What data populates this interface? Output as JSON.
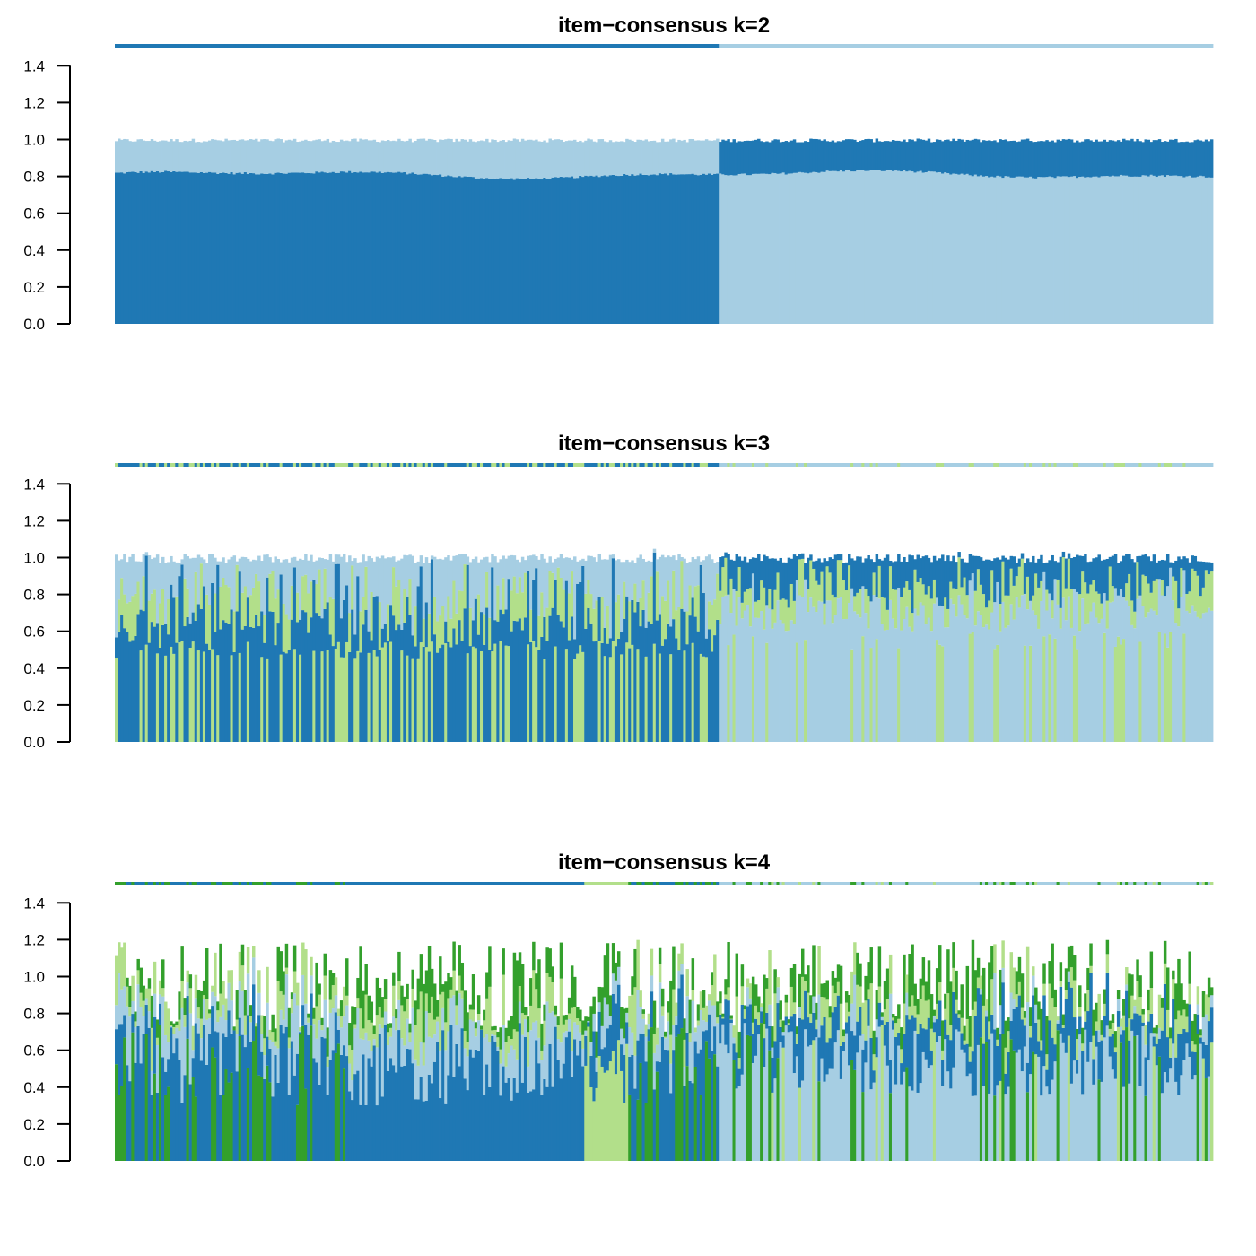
{
  "chart_data": [
    {
      "type": "stacked-bar",
      "title": "item−consensus k=2",
      "k": 2,
      "n_items": 400,
      "split_item": 220,
      "ylim": [
        0,
        1.4
      ],
      "yticks": [
        "0.0",
        "0.2",
        "0.4",
        "0.6",
        "0.8",
        "1.0",
        "1.2",
        "1.4"
      ],
      "cluster_colors": [
        "#1f78b4",
        "#a6cee3"
      ],
      "top_bar_colors": [
        "#1f78b4",
        "#a6cee3"
      ],
      "segments_summary": [
        {
          "cluster": 1,
          "items": "1-220",
          "own_share_range": [
            0.78,
            0.86
          ],
          "other_share_range": [
            0.14,
            0.22
          ],
          "total": 1.0
        },
        {
          "cluster": 2,
          "items": "221-400",
          "own_share_range": [
            0.78,
            0.86
          ],
          "other_share_range": [
            0.13,
            0.21
          ],
          "total": 1.0
        }
      ]
    },
    {
      "type": "stacked-bar",
      "title": "item−consensus k=3",
      "k": 3,
      "n_items": 400,
      "split_item": 220,
      "ylim": [
        0,
        1.4
      ],
      "yticks": [
        "0.0",
        "0.2",
        "0.4",
        "0.6",
        "0.8",
        "1.0",
        "1.2",
        "1.4"
      ],
      "cluster_colors": [
        "#1f78b4",
        "#a6cee3",
        "#b2df8a"
      ],
      "top_bar_colors": [
        "#1f78b4",
        "#a6cee3",
        "#b2df8a"
      ],
      "total_range": [
        0.95,
        1.03
      ]
    },
    {
      "type": "stacked-bar",
      "title": "item−consensus k=4",
      "k": 4,
      "n_items": 400,
      "split_item": 220,
      "ylim": [
        0,
        1.4
      ],
      "yticks": [
        "0.0",
        "0.2",
        "0.4",
        "0.6",
        "0.8",
        "1.0",
        "1.2",
        "1.4"
      ],
      "cluster_colors": [
        "#1f78b4",
        "#a6cee3",
        "#b2df8a",
        "#33a02c"
      ],
      "top_bar_colors": [
        "#1f78b4",
        "#a6cee3",
        "#b2df8a",
        "#33a02c"
      ],
      "total_range": [
        0.65,
        1.27
      ]
    }
  ]
}
